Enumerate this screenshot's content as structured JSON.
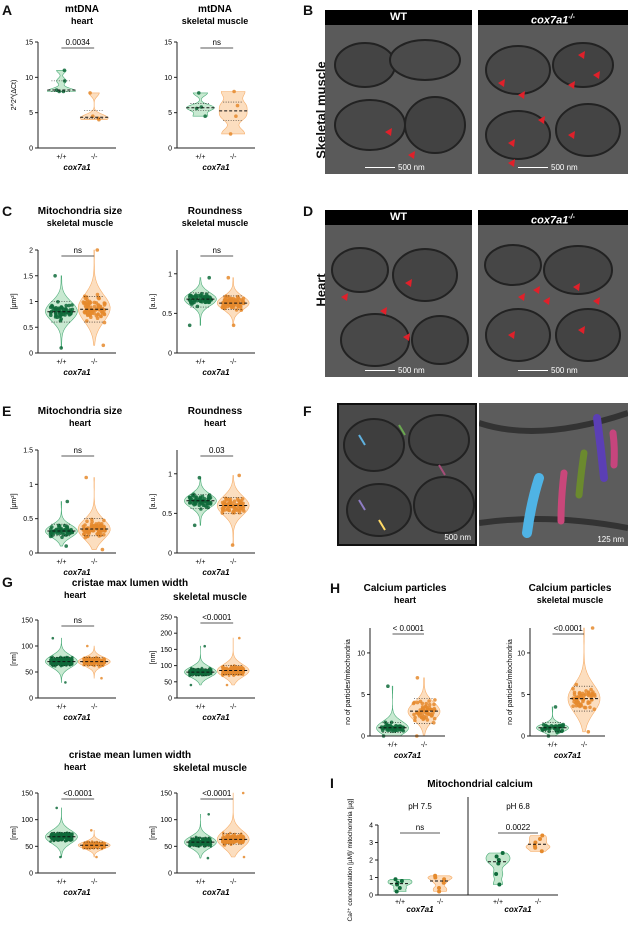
{
  "colors": {
    "green": "#2e9e62",
    "green_light": "#bfe6c9",
    "green_dark": "#0f6b3b",
    "orange": "#f5a050",
    "orange_light": "#fcd9b5",
    "orange_dark": "#e58a2d",
    "arrow": "#e0202a"
  },
  "panels": {
    "A": {
      "letter": "A"
    },
    "B": {
      "letter": "B",
      "row_label": "Skeletal muscle",
      "left_label": "WT",
      "right_label": "cox7a1",
      "right_sup": "-/-",
      "scalebar": "500 nm"
    },
    "C": {
      "letter": "C"
    },
    "D": {
      "letter": "D",
      "row_label": "Heart",
      "left_label": "WT",
      "right_label": "cox7a1",
      "right_sup": "-/-",
      "scalebar": "500 nm"
    },
    "E": {
      "letter": "E"
    },
    "F": {
      "letter": "F",
      "scalebar_left": "500 nm",
      "scalebar_right": "125 nm"
    },
    "G": {
      "letter": "G"
    },
    "H": {
      "letter": "H"
    },
    "I": {
      "letter": "I"
    }
  },
  "chart_data": [
    {
      "id": "A1",
      "type": "violin",
      "title": "mtDNA",
      "subtitle": "heart",
      "ylabel": "2^2^(ΔCt)",
      "ylim": [
        0,
        15
      ],
      "yticks": [
        0,
        5,
        10,
        15
      ],
      "categories": [
        "+/+",
        "-/-"
      ],
      "xlabel": "cox7a1",
      "significance": "0.0034",
      "series": [
        {
          "name": "+/+",
          "values": [
            8.0,
            8.0,
            8.2,
            9.5,
            11.0
          ]
        },
        {
          "name": "-/-",
          "values": [
            4.0,
            4.2,
            4.5,
            7.8
          ]
        }
      ]
    },
    {
      "id": "A2",
      "type": "violin",
      "title": "mtDNA",
      "subtitle": "skeletal muscle",
      "ylabel": "",
      "ylim": [
        0,
        15
      ],
      "yticks": [
        0,
        5,
        10,
        15
      ],
      "categories": [
        "+/+",
        "-/-"
      ],
      "xlabel": "cox7a1",
      "significance": "ns",
      "series": [
        {
          "name": "+/+",
          "values": [
            4.5,
            5.6,
            5.8,
            7.8
          ]
        },
        {
          "name": "-/-",
          "values": [
            2.0,
            4.5,
            6.0,
            8.0
          ]
        }
      ]
    },
    {
      "id": "C1",
      "type": "violin",
      "title": "Mitochondria size",
      "subtitle": "skeletal muscle",
      "ylabel": "[µm²]",
      "ylim": [
        0,
        2.0
      ],
      "yticks": [
        0,
        0.5,
        1.0,
        1.5,
        2.0
      ],
      "categories": [
        "+/+",
        "-/-"
      ],
      "xlabel": "cox7a1",
      "significance": "ns",
      "series": [
        {
          "name": "+/+",
          "median": 0.8,
          "q1": 0.6,
          "q3": 1.0,
          "min": 0.1,
          "max": 1.5,
          "n": 60
        },
        {
          "name": "-/-",
          "median": 0.85,
          "q1": 0.6,
          "q3": 1.1,
          "min": 0.15,
          "max": 2.0,
          "n": 80
        }
      ]
    },
    {
      "id": "C2",
      "type": "violin",
      "title": "Roundness",
      "subtitle": "skeletal muscle",
      "ylabel": "[a.u.]",
      "ylim": [
        0,
        1.3
      ],
      "yticks": [
        0,
        0.5,
        1.0
      ],
      "categories": [
        "+/+",
        "-/-"
      ],
      "xlabel": "cox7a1",
      "significance": "ns",
      "series": [
        {
          "name": "+/+",
          "median": 0.68,
          "q1": 0.58,
          "q3": 0.76,
          "min": 0.35,
          "max": 0.95,
          "n": 60
        },
        {
          "name": "-/-",
          "median": 0.63,
          "q1": 0.55,
          "q3": 0.72,
          "min": 0.35,
          "max": 0.95,
          "n": 80
        }
      ]
    },
    {
      "id": "E1",
      "type": "violin",
      "title": "Mitochondria size",
      "subtitle": "heart",
      "ylabel": "[µm²]",
      "ylim": [
        0,
        1.5
      ],
      "yticks": [
        0,
        0.5,
        1.0,
        1.5
      ],
      "categories": [
        "+/+",
        "-/-"
      ],
      "xlabel": "cox7a1",
      "significance": "ns",
      "series": [
        {
          "name": "+/+",
          "median": 0.32,
          "q1": 0.25,
          "q3": 0.42,
          "min": 0.1,
          "max": 0.75,
          "n": 60
        },
        {
          "name": "-/-",
          "median": 0.35,
          "q1": 0.25,
          "q3": 0.5,
          "min": 0.05,
          "max": 1.1,
          "n": 80
        }
      ]
    },
    {
      "id": "E2",
      "type": "violin",
      "title": "Roundness",
      "subtitle": "heart",
      "ylabel": "[a.u.]",
      "ylim": [
        0,
        1.3
      ],
      "yticks": [
        0,
        0.5,
        1.0
      ],
      "categories": [
        "+/+",
        "-/-"
      ],
      "xlabel": "cox7a1",
      "significance": "0.03",
      "series": [
        {
          "name": "+/+",
          "median": 0.66,
          "q1": 0.56,
          "q3": 0.74,
          "min": 0.35,
          "max": 0.95,
          "n": 60
        },
        {
          "name": "-/-",
          "median": 0.6,
          "q1": 0.5,
          "q3": 0.7,
          "min": 0.1,
          "max": 0.98,
          "n": 80
        }
      ]
    },
    {
      "id": "G1",
      "type": "violin",
      "title": "cristae max  lumen width",
      "subtitle": "heart",
      "ylabel": "[nm]",
      "ylim": [
        0,
        150
      ],
      "yticks": [
        0,
        50,
        100,
        150
      ],
      "categories": [
        "+/+",
        "-/-"
      ],
      "xlabel": "cox7a1",
      "significance": "ns",
      "series": [
        {
          "name": "+/+",
          "median": 70,
          "q1": 62,
          "q3": 78,
          "min": 30,
          "max": 115,
          "n": 300
        },
        {
          "name": "-/-",
          "median": 70,
          "q1": 62,
          "q3": 78,
          "min": 38,
          "max": 100,
          "n": 300
        }
      ]
    },
    {
      "id": "G2",
      "type": "violin",
      "title": "skeletal muscle",
      "subtitle": "",
      "ylabel": "[nm]",
      "ylim": [
        0,
        250
      ],
      "yticks": [
        0,
        50,
        100,
        150,
        200,
        250
      ],
      "categories": [
        "+/+",
        "-/-"
      ],
      "xlabel": "cox7a1",
      "significance": "<0.0001",
      "series": [
        {
          "name": "+/+",
          "median": 80,
          "q1": 70,
          "q3": 90,
          "min": 40,
          "max": 160,
          "n": 300
        },
        {
          "name": "-/-",
          "median": 85,
          "q1": 72,
          "q3": 100,
          "min": 40,
          "max": 185,
          "n": 300
        }
      ]
    },
    {
      "id": "G3",
      "type": "violin",
      "title": "cristae mean  lumen width",
      "subtitle": "heart",
      "ylabel": "[nm]",
      "ylim": [
        0,
        150
      ],
      "yticks": [
        0,
        50,
        100,
        150
      ],
      "categories": [
        "+/+",
        "-/-"
      ],
      "xlabel": "cox7a1",
      "significance": "<0.0001",
      "series": [
        {
          "name": "+/+",
          "median": 68,
          "q1": 60,
          "q3": 76,
          "min": 30,
          "max": 122,
          "n": 300
        },
        {
          "name": "-/-",
          "median": 52,
          "q1": 46,
          "q3": 58,
          "min": 30,
          "max": 80,
          "n": 300
        }
      ]
    },
    {
      "id": "G4",
      "type": "violin",
      "title": "skeletal muscle",
      "subtitle": "",
      "ylabel": "[nm]",
      "ylim": [
        0,
        150
      ],
      "yticks": [
        0,
        50,
        100,
        150
      ],
      "categories": [
        "+/+",
        "-/-"
      ],
      "xlabel": "cox7a1",
      "significance": "<0.0001",
      "series": [
        {
          "name": "+/+",
          "median": 58,
          "q1": 50,
          "q3": 66,
          "min": 28,
          "max": 110,
          "n": 300
        },
        {
          "name": "-/-",
          "median": 63,
          "q1": 54,
          "q3": 74,
          "min": 30,
          "max": 150,
          "n": 300
        }
      ]
    },
    {
      "id": "H1",
      "type": "violin",
      "title": "Calcium particles",
      "subtitle": "heart",
      "ylabel": "no of particles/mitochondria",
      "ylim": [
        0,
        13
      ],
      "yticks": [
        0,
        5,
        10
      ],
      "categories": [
        "+/+",
        "-/-"
      ],
      "xlabel": "cox7a1",
      "significance": "< 0.0001",
      "series": [
        {
          "name": "+/+",
          "median": 1.0,
          "q1": 0.4,
          "q3": 1.6,
          "min": 0,
          "max": 6,
          "n": 50
        },
        {
          "name": "-/-",
          "median": 3.0,
          "q1": 1.5,
          "q3": 4.5,
          "min": 0,
          "max": 7,
          "n": 60
        }
      ]
    },
    {
      "id": "H2",
      "type": "violin",
      "title": "Calcium particles",
      "subtitle": "skeletal muscle",
      "ylabel": "no of particles/mitochondria",
      "ylim": [
        0,
        13
      ],
      "yticks": [
        0,
        5,
        10
      ],
      "categories": [
        "+/+",
        "-/-"
      ],
      "xlabel": "cox7a1",
      "significance": "<0.0001",
      "series": [
        {
          "name": "+/+",
          "median": 1.0,
          "q1": 0.5,
          "q3": 1.6,
          "min": 0,
          "max": 3.5,
          "n": 50
        },
        {
          "name": "-/-",
          "median": 4.5,
          "q1": 3.0,
          "q3": 6.0,
          "min": 0.5,
          "max": 13,
          "n": 60
        }
      ]
    },
    {
      "id": "I1",
      "type": "violin",
      "title": "Mitochondrial calcium",
      "subtitle": "",
      "ylabel": "Ca²⁺ concentration [µM]/ mitochondria [µg]",
      "ylim": [
        0,
        4
      ],
      "yticks": [
        0,
        1,
        2,
        3,
        4
      ],
      "categories": [
        "+/+",
        "-/-",
        "+/+",
        "-/-"
      ],
      "xlabel": "cox7a1",
      "groups": [
        {
          "label": "pH 7.5",
          "significance": "ns"
        },
        {
          "label": "pH 6.8",
          "significance": "0.0022"
        }
      ],
      "series": [
        {
          "name": "+/+ pH 7.5",
          "values": [
            0.2,
            0.4,
            0.6,
            0.7,
            0.8,
            0.9
          ]
        },
        {
          "name": "-/- pH 7.5",
          "values": [
            0.2,
            0.4,
            0.7,
            0.9,
            1.0,
            1.1
          ]
        },
        {
          "name": "+/+ pH 6.8",
          "values": [
            0.6,
            1.2,
            1.8,
            2.0,
            2.2,
            2.4
          ]
        },
        {
          "name": "-/- pH 6.8",
          "values": [
            2.5,
            2.7,
            2.8,
            3.0,
            3.2,
            3.4
          ]
        }
      ]
    }
  ]
}
